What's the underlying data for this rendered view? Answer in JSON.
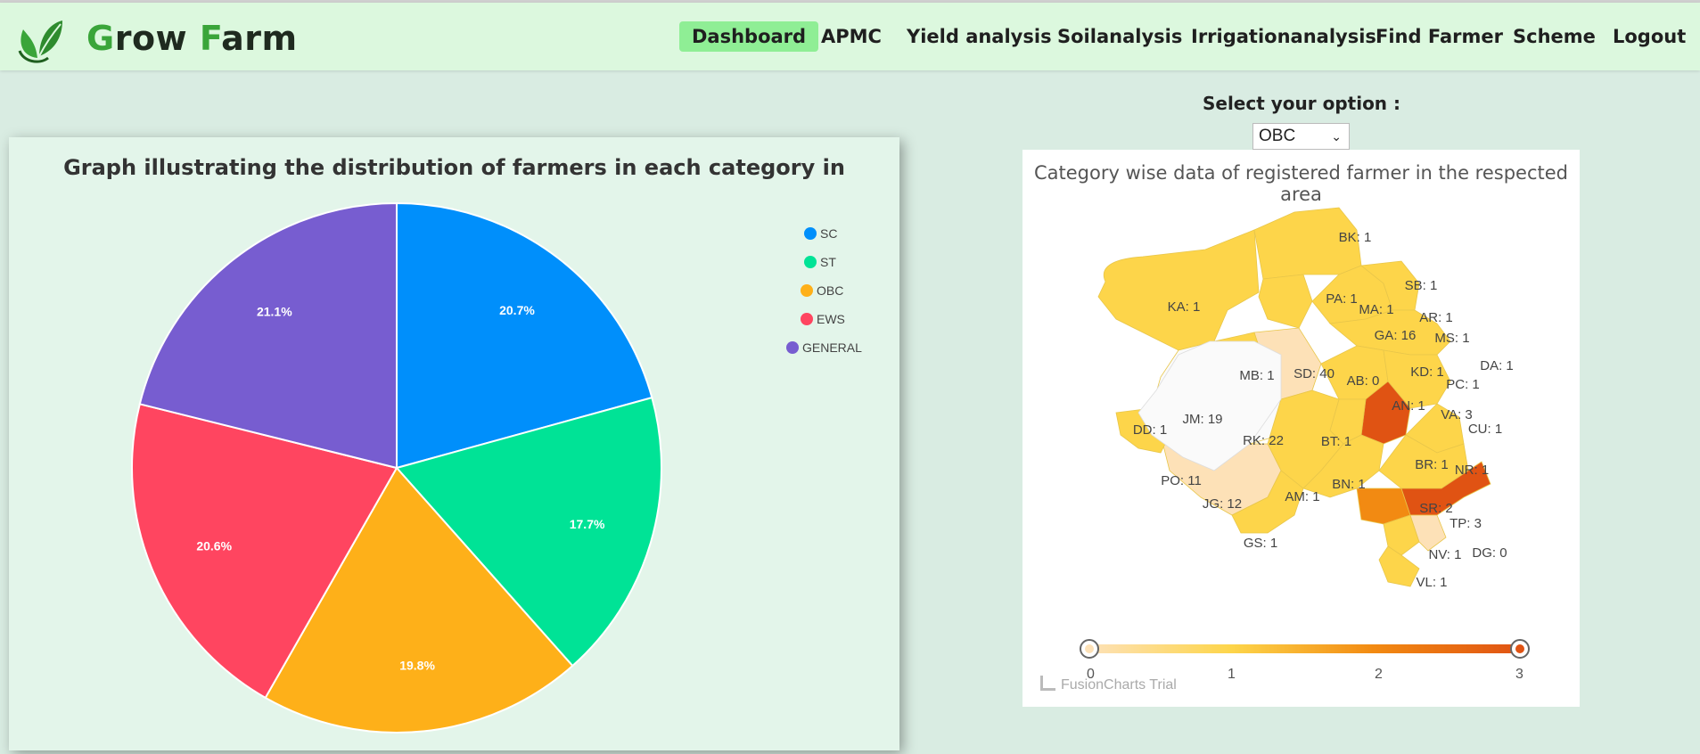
{
  "brand": {
    "first_letter": "G",
    "first_rest": "row ",
    "second_letter": "F",
    "second_rest": "arm"
  },
  "nav": [
    {
      "label": "Dashboard",
      "active": true
    },
    {
      "label": "APMC"
    },
    {
      "label": "Yield analysis"
    },
    {
      "label": "Soilanalysis"
    },
    {
      "label": "Irrigationanalysis"
    },
    {
      "label": "Find Farmer"
    },
    {
      "label": "Scheme"
    },
    {
      "label": "Logout"
    }
  ],
  "select": {
    "label": "Select your option :",
    "value": "OBC"
  },
  "chart_data": [
    {
      "type": "pie",
      "title": "Graph illustrating the distribution of farmers in each category in",
      "categories": [
        "SC",
        "ST",
        "OBC",
        "EWS",
        "GENERAL"
      ],
      "values": [
        20.7,
        17.7,
        19.8,
        20.6,
        21.1
      ],
      "labels": [
        "20.7%",
        "17.7%",
        "19.8%",
        "20.6%",
        "21.1%"
      ],
      "colors": [
        "#008ffb",
        "#00e396",
        "#feb019",
        "#ff4560",
        "#775dd0"
      ],
      "legend": "right"
    },
    {
      "type": "map",
      "title": "Category wise data of registered farmer in the respected area",
      "regions": [
        {
          "code": "BK",
          "value": 1
        },
        {
          "code": "KA",
          "value": 1
        },
        {
          "code": "PA",
          "value": 1
        },
        {
          "code": "SB",
          "value": 1
        },
        {
          "code": "MA",
          "value": 1
        },
        {
          "code": "AR",
          "value": 1
        },
        {
          "code": "GA",
          "value": 16
        },
        {
          "code": "MS",
          "value": 1
        },
        {
          "code": "DA",
          "value": 1
        },
        {
          "code": "MB",
          "value": 1
        },
        {
          "code": "SD",
          "value": 40
        },
        {
          "code": "AB",
          "value": 0
        },
        {
          "code": "KD",
          "value": 1
        },
        {
          "code": "PC",
          "value": 1
        },
        {
          "code": "JM",
          "value": 19
        },
        {
          "code": "AN",
          "value": 1
        },
        {
          "code": "VA",
          "value": 3
        },
        {
          "code": "DD",
          "value": 1
        },
        {
          "code": "RK",
          "value": 22
        },
        {
          "code": "BT",
          "value": 1
        },
        {
          "code": "CU",
          "value": 1
        },
        {
          "code": "BR",
          "value": 1
        },
        {
          "code": "NR",
          "value": 1
        },
        {
          "code": "PO",
          "value": 11
        },
        {
          "code": "BN",
          "value": 1
        },
        {
          "code": "JG",
          "value": 12
        },
        {
          "code": "AM",
          "value": 1
        },
        {
          "code": "SR",
          "value": 2
        },
        {
          "code": "TP",
          "value": 3
        },
        {
          "code": "GS",
          "value": 1
        },
        {
          "code": "NV",
          "value": 1
        },
        {
          "code": "DG",
          "value": 0
        },
        {
          "code": "VL",
          "value": 1
        }
      ],
      "scale": {
        "min": 0,
        "max": 3,
        "ticks": [
          "0",
          "1",
          "2",
          "3"
        ]
      },
      "watermark": "FusionCharts Trial"
    }
  ]
}
